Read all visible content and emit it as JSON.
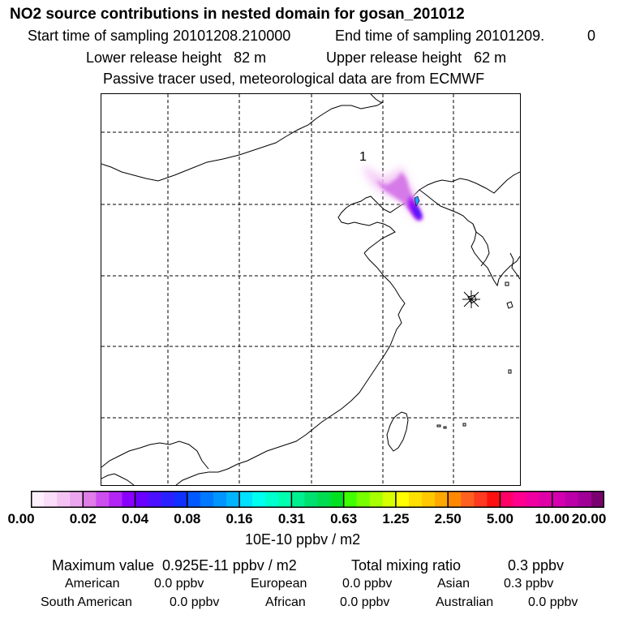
{
  "header": {
    "title": "NO2 source contributions in nested domain for gosan_201012",
    "start_label": "Start time of sampling 20101208.210000",
    "end_label": "End time of sampling 20101209.",
    "end_suffix": "0",
    "lower_label": "Lower release height   82 m",
    "upper_label": "Upper release height   62 m",
    "note": "Passive tracer used, meteorological data are from ECMWF"
  },
  "map": {
    "source_label": "1",
    "receptor_marker": "asterisk-marker"
  },
  "colorbar": {
    "colors": [
      "#fdf0fd",
      "#f9ddf9",
      "#f3c4f3",
      "#eca6ef",
      "#e07de8",
      "#cd4ff0",
      "#b325f5",
      "#8a00ff",
      "#6a00ff",
      "#4a10ff",
      "#2a20ff",
      "#1030ff",
      "#0058ff",
      "#0078ff",
      "#0095ff",
      "#00b4ff",
      "#00e0ff",
      "#00ffef",
      "#00ffcf",
      "#00ffaf",
      "#00f090",
      "#00e070",
      "#00dc50",
      "#00e020",
      "#40ff00",
      "#78ff00",
      "#a8ff00",
      "#d8ff00",
      "#ffff00",
      "#ffe000",
      "#ffc800",
      "#ffa800",
      "#ff8800",
      "#ff6020",
      "#ff3a20",
      "#ff1010",
      "#ff0066",
      "#ff0090",
      "#f000a0",
      "#e000a8",
      "#d400b0",
      "#bb00a8",
      "#a00098",
      "#7a0070"
    ],
    "ticks": [
      "0.00",
      "0.02",
      "0.04",
      "0.08",
      "0.16",
      "0.31",
      "0.63",
      "1.25",
      "2.50",
      "5.00",
      "10.00",
      "20.00"
    ],
    "unit": "10E-10 ppbv / m2"
  },
  "stats": {
    "max_label": "Maximum value  0.925E-11 ppbv / m2",
    "total_label": "Total mixing ratio",
    "total_value": "0.3 ppbv",
    "regions": [
      {
        "name": "American",
        "value": "0.0 ppbv"
      },
      {
        "name": "European",
        "value": "0.0 ppbv"
      },
      {
        "name": "Asian",
        "value": "0.3 ppbv"
      },
      {
        "name": "South American",
        "value": "0.0 ppbv"
      },
      {
        "name": "African",
        "value": "0.0 ppbv"
      },
      {
        "name": "Australian",
        "value": "0.0 ppbv"
      }
    ]
  }
}
